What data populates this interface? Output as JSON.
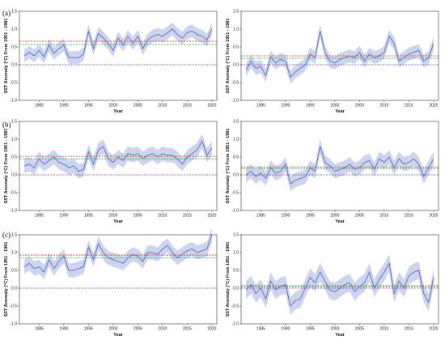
{
  "figure": {
    "panel_labels": [
      "(a)",
      "(b)",
      "(c)"
    ]
  },
  "colors": {
    "line": "#5a6fb8",
    "band": "#c4cdea",
    "red_ref": "#e0302a",
    "green_ref": "#3aa84a",
    "purple_ref": "#8b3aa8",
    "axis": "#333333"
  },
  "chart_data": [
    {
      "type": "line",
      "panel": "(a)",
      "position": "left",
      "xlabel": "Year",
      "ylabel": "SST Anomaly (°C) From 1951 - 1981",
      "xlim": [
        1981,
        2021
      ],
      "ylim": [
        -1.0,
        1.5
      ],
      "xticks": [
        1985,
        1990,
        1995,
        2000,
        2005,
        2010,
        2015,
        2020
      ],
      "yticks": [
        -1.0,
        -0.5,
        0.0,
        0.5,
        1.0,
        1.5
      ],
      "x": [
        1982,
        1983,
        1984,
        1985,
        1986,
        1987,
        1988,
        1989,
        1990,
        1991,
        1992,
        1993,
        1994,
        1995,
        1996,
        1997,
        1998,
        1999,
        2000,
        2001,
        2002,
        2003,
        2004,
        2005,
        2006,
        2007,
        2008,
        2009,
        2010,
        2011,
        2012,
        2013,
        2014,
        2015,
        2016,
        2017,
        2018,
        2019,
        2020
      ],
      "series": [
        {
          "values": [
            0.25,
            0.35,
            0.25,
            0.4,
            0.22,
            0.55,
            0.32,
            0.45,
            0.55,
            0.2,
            0.2,
            0.2,
            0.3,
            0.95,
            0.45,
            0.88,
            0.75,
            0.6,
            0.4,
            0.75,
            0.55,
            0.8,
            0.6,
            0.8,
            0.45,
            0.7,
            0.8,
            0.85,
            0.8,
            0.9,
            1.0,
            0.85,
            0.75,
            0.9,
            0.95,
            0.85,
            0.8,
            0.7,
            1.0
          ],
          "band_halfwidth": 0.18
        }
      ],
      "reference_lines": [
        {
          "color": "red",
          "y": 0.66
        },
        {
          "color": "green",
          "y": 0.57
        },
        {
          "color": "purple",
          "y": 0.0
        }
      ]
    },
    {
      "type": "line",
      "panel": "(a)",
      "position": "right",
      "xlabel": "Year",
      "ylabel": "SST Anomaly (°C) From 1951 - 1981",
      "xlim": [
        1981,
        2021
      ],
      "ylim": [
        -1.0,
        1.5
      ],
      "xticks": [
        1985,
        1990,
        1995,
        2000,
        2005,
        2010,
        2015,
        2020
      ],
      "yticks": [
        -1.0,
        -0.5,
        0.0,
        0.5,
        1.0,
        1.5
      ],
      "x": [
        1982,
        1983,
        1984,
        1985,
        1986,
        1987,
        1988,
        1989,
        1990,
        1991,
        1992,
        1993,
        1994,
        1995,
        1996,
        1997,
        1998,
        1999,
        2000,
        2001,
        2002,
        2003,
        2004,
        2005,
        2006,
        2007,
        2008,
        2009,
        2010,
        2011,
        2012,
        2013,
        2014,
        2015,
        2016,
        2017,
        2018,
        2019,
        2020
      ],
      "series": [
        {
          "values": [
            -0.15,
            0.1,
            -0.1,
            -0.05,
            -0.3,
            0.22,
            0.05,
            0.15,
            0.1,
            -0.35,
            -0.2,
            -0.1,
            0.0,
            0.3,
            0.2,
            0.95,
            0.35,
            0.1,
            0.05,
            0.15,
            0.2,
            0.25,
            0.2,
            0.35,
            0.1,
            0.3,
            0.2,
            0.25,
            0.35,
            0.8,
            0.6,
            0.1,
            0.2,
            0.3,
            0.35,
            0.4,
            0.1,
            0.2,
            0.6
          ],
          "band_halfwidth": 0.18
        }
      ],
      "reference_lines": [
        {
          "color": "red",
          "y": 0.25
        },
        {
          "color": "green",
          "y": 0.18
        },
        {
          "color": "purple",
          "y": 0.0
        }
      ]
    },
    {
      "type": "line",
      "panel": "(b)",
      "position": "left",
      "xlabel": "Year",
      "ylabel": "SST Anomaly (°C) From 1951 - 1981",
      "xlim": [
        1981,
        2021
      ],
      "ylim": [
        -1.0,
        1.5
      ],
      "xticks": [
        1985,
        1990,
        1995,
        2000,
        2005,
        2010,
        2015,
        2020
      ],
      "yticks": [
        -1.0,
        -0.5,
        0.0,
        0.5,
        1.0,
        1.5
      ],
      "x": [
        1982,
        1983,
        1984,
        1985,
        1986,
        1987,
        1988,
        1989,
        1990,
        1991,
        1992,
        1993,
        1994,
        1995,
        1996,
        1997,
        1998,
        1999,
        2000,
        2001,
        2002,
        2003,
        2004,
        2005,
        2006,
        2007,
        2008,
        2009,
        2010,
        2011,
        2012,
        2013,
        2014,
        2015,
        2016,
        2017,
        2018,
        2019,
        2020
      ],
      "series": [
        {
          "values": [
            0.25,
            0.3,
            0.2,
            0.45,
            0.3,
            0.4,
            0.5,
            0.35,
            0.3,
            0.2,
            0.25,
            0.1,
            0.15,
            0.65,
            0.3,
            0.7,
            0.8,
            0.45,
            0.35,
            0.5,
            0.4,
            0.6,
            0.55,
            0.6,
            0.45,
            0.55,
            0.6,
            0.5,
            0.6,
            0.55,
            0.55,
            0.45,
            0.3,
            0.5,
            0.6,
            0.7,
            0.95,
            0.55,
            0.75
          ],
          "band_halfwidth": 0.2
        }
      ],
      "reference_lines": [
        {
          "color": "red",
          "y": 0.52
        },
        {
          "color": "green",
          "y": 0.45
        },
        {
          "color": "purple",
          "y": 0.0
        }
      ]
    },
    {
      "type": "line",
      "panel": "(b)",
      "position": "right",
      "xlabel": "Year",
      "ylabel": "SST Anomaly (°C) From 1951 - 1981",
      "xlim": [
        1981,
        2021
      ],
      "ylim": [
        -1.0,
        1.5
      ],
      "xticks": [
        1985,
        1990,
        1995,
        2000,
        2005,
        2010,
        2015,
        2020
      ],
      "yticks": [
        -1.0,
        -0.5,
        0.0,
        0.5,
        1.0,
        1.5
      ],
      "x": [
        1982,
        1983,
        1984,
        1985,
        1986,
        1987,
        1988,
        1989,
        1990,
        1991,
        1992,
        1993,
        1994,
        1995,
        1996,
        1997,
        1998,
        1999,
        2000,
        2001,
        2002,
        2003,
        2004,
        2005,
        2006,
        2007,
        2008,
        2009,
        2010,
        2011,
        2012,
        2013,
        2014,
        2015,
        2016,
        2017,
        2018,
        2019,
        2020
      ],
      "series": [
        {
          "values": [
            0.0,
            0.1,
            -0.05,
            0.05,
            -0.1,
            0.2,
            0.05,
            0.1,
            0.3,
            -0.25,
            -0.15,
            -0.1,
            -0.05,
            0.2,
            0.1,
            0.8,
            0.35,
            0.25,
            0.1,
            0.15,
            0.2,
            0.3,
            0.15,
            0.2,
            0.35,
            0.4,
            0.15,
            0.45,
            0.35,
            0.5,
            0.2,
            0.45,
            0.3,
            0.35,
            0.45,
            0.3,
            -0.05,
            0.2,
            0.45
          ],
          "band_halfwidth": 0.2
        }
      ],
      "reference_lines": [
        {
          "color": "red",
          "y": 0.22
        },
        {
          "color": "green",
          "y": 0.17
        },
        {
          "color": "purple",
          "y": 0.0
        }
      ]
    },
    {
      "type": "line",
      "panel": "(c)",
      "position": "left",
      "xlabel": "Year",
      "ylabel": "SST Anomaly (°C) From 1951 - 1981",
      "xlim": [
        1981,
        2021
      ],
      "ylim": [
        -1.0,
        1.5
      ],
      "xticks": [
        1985,
        1990,
        1995,
        2000,
        2005,
        2010,
        2015,
        2020
      ],
      "yticks": [
        -1.0,
        -0.5,
        0.0,
        0.5,
        1.0,
        1.5
      ],
      "x": [
        1982,
        1983,
        1984,
        1985,
        1986,
        1987,
        1988,
        1989,
        1990,
        1991,
        1992,
        1993,
        1994,
        1995,
        1996,
        1997,
        1998,
        1999,
        2000,
        2001,
        2002,
        2003,
        2004,
        2005,
        2006,
        2007,
        2008,
        2009,
        2010,
        2011,
        2012,
        2013,
        2014,
        2015,
        2016,
        2017,
        2018,
        2019,
        2020
      ],
      "series": [
        {
          "values": [
            0.6,
            0.7,
            0.55,
            0.6,
            0.45,
            0.8,
            0.55,
            0.75,
            0.9,
            0.5,
            0.5,
            0.55,
            0.6,
            1.15,
            0.8,
            1.25,
            1.0,
            0.85,
            0.8,
            0.75,
            0.7,
            0.85,
            0.95,
            0.9,
            0.75,
            1.0,
            1.0,
            0.95,
            1.1,
            1.2,
            1.0,
            0.85,
            0.95,
            1.05,
            1.1,
            1.0,
            1.05,
            1.1,
            1.5
          ],
          "band_halfwidth": 0.2
        }
      ],
      "reference_lines": [
        {
          "color": "red",
          "y": 0.93
        },
        {
          "color": "green",
          "y": 0.85
        },
        {
          "color": "purple",
          "y": 0.0
        }
      ]
    },
    {
      "type": "line",
      "panel": "(c)",
      "position": "right",
      "xlabel": "Year",
      "ylabel": "SST Anomaly (°C) From 1951 - 1981",
      "xlim": [
        1981,
        2021
      ],
      "ylim": [
        -1.0,
        1.5
      ],
      "xticks": [
        1985,
        1990,
        1995,
        2000,
        2005,
        2010,
        2015,
        2020
      ],
      "yticks": [
        -1.0,
        -0.5,
        0.0,
        0.5,
        1.0,
        1.5
      ],
      "x": [
        1982,
        1983,
        1984,
        1985,
        1986,
        1987,
        1988,
        1989,
        1990,
        1991,
        1992,
        1993,
        1994,
        1995,
        1996,
        1997,
        1998,
        1999,
        2000,
        2001,
        2002,
        2003,
        2004,
        2005,
        2006,
        2007,
        2008,
        2009,
        2010,
        2011,
        2012,
        2013,
        2014,
        2015,
        2016,
        2017,
        2018,
        2019,
        2020
      ],
      "series": [
        {
          "values": [
            -0.05,
            0.1,
            -0.15,
            0.0,
            -0.3,
            0.2,
            -0.05,
            0.05,
            0.1,
            -0.5,
            -0.35,
            -0.3,
            0.0,
            0.3,
            0.15,
            0.45,
            0.2,
            -0.05,
            -0.1,
            0.0,
            0.1,
            0.15,
            -0.1,
            0.05,
            0.15,
            0.45,
            0.0,
            0.25,
            0.45,
            0.7,
            -0.15,
            0.2,
            0.0,
            0.35,
            0.45,
            0.5,
            -0.15,
            -0.4,
            0.3
          ],
          "band_halfwidth": 0.25
        }
      ],
      "reference_lines": [
        {
          "color": "red",
          "y": 0.07
        },
        {
          "color": "green",
          "y": 0.04
        },
        {
          "color": "purple",
          "y": 0.0
        }
      ]
    }
  ]
}
